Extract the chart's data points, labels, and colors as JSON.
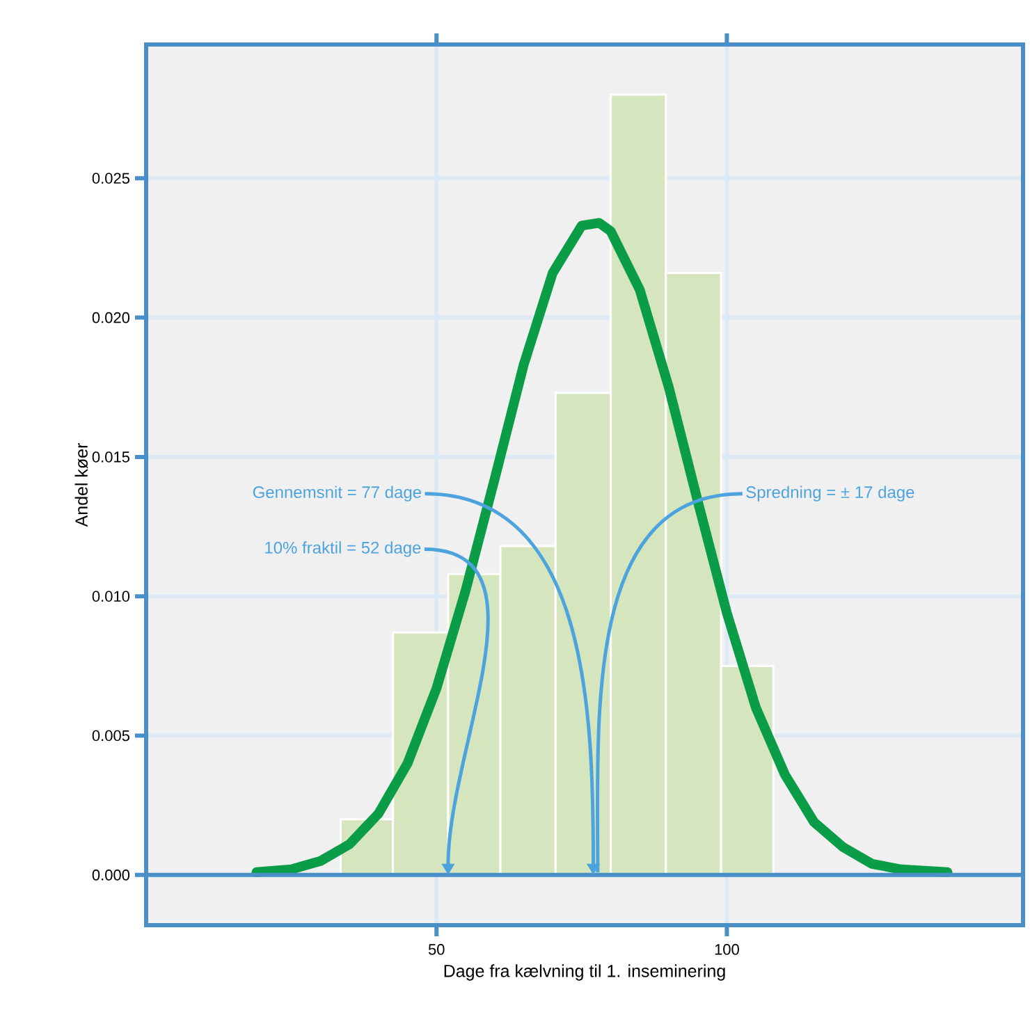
{
  "chart_data": {
    "type": "histogram",
    "xlabel": "Dage fra kælvning til 1. inseminering",
    "ylabel": "Andel køer",
    "series": [
      {
        "bins": [
          33.5,
          42.5,
          52,
          61,
          70.5,
          80,
          89.5,
          99,
          108
        ],
        "values": [
          0.002,
          0.0087,
          0.0108,
          0.0118,
          0.0173,
          0.028,
          0.0216,
          0.0075
        ],
        "color": "#d5e6bf"
      },
      {
        "type": "line",
        "x": [
          19,
          25,
          30,
          35,
          40,
          45,
          50,
          55,
          60,
          65,
          70,
          75,
          78,
          80,
          85,
          90,
          95,
          100,
          105,
          110,
          115,
          120,
          125,
          130,
          138
        ],
        "values": [
          0.0001,
          0.0002,
          0.0005,
          0.0011,
          0.0022,
          0.004,
          0.0067,
          0.0102,
          0.0142,
          0.0183,
          0.0216,
          0.0233,
          0.0234,
          0.0231,
          0.021,
          0.0175,
          0.0134,
          0.0094,
          0.006,
          0.0036,
          0.0019,
          0.001,
          0.0004,
          0.0002,
          0.0001
        ],
        "color": "#0b9c48"
      }
    ],
    "xlim": [
      0,
      151
    ],
    "ylim": [
      -0.0018,
      0.0298
    ],
    "xticks": [
      50,
      100
    ],
    "yticks": [
      {
        "value": 0,
        "label": "0.000"
      },
      {
        "value": 0.005,
        "label": "0.005"
      },
      {
        "value": 0.01,
        "label": "0.010"
      },
      {
        "value": 0.015,
        "label": "0.015"
      },
      {
        "value": 0.02,
        "label": "0.020"
      },
      {
        "value": 0.025,
        "label": "0.025"
      }
    ],
    "grid": true,
    "ref_lines": [
      {
        "axis": "y",
        "value": 0,
        "color": "#4a8fc7"
      }
    ],
    "annotations": [
      {
        "text": "Gennemsnit = 77 dage",
        "x": 77,
        "y": 0
      },
      {
        "text": "10% fraktil = 52 dage",
        "x": 52,
        "y": 0
      },
      "Spredning = ± 17 dage"
    ]
  }
}
